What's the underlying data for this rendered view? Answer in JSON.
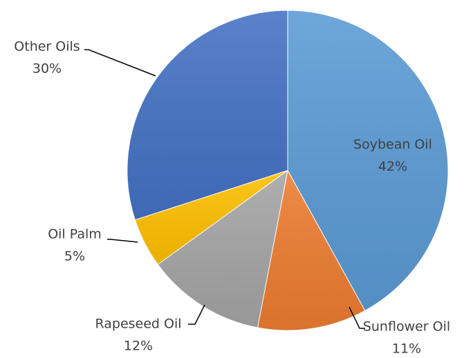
{
  "chart_data": {
    "type": "pie",
    "categories": [
      "Soybean Oil",
      "Sunflower Oil",
      "Rapeseed Oil",
      "Oil Palm",
      "Other Oils"
    ],
    "values": [
      42,
      11,
      12,
      5,
      30
    ],
    "value_labels": [
      "42%",
      "11%",
      "12%",
      "5%",
      "30%"
    ],
    "colors": [
      "#5b9bd5",
      "#ed7d31",
      "#a5a5a5",
      "#ffc000",
      "#4472c4"
    ]
  }
}
